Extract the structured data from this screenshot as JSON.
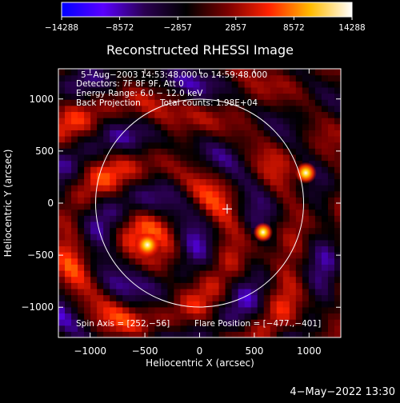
{
  "chart_data": {
    "type": "heatmap",
    "title": "Reconstructed RHESSI Image",
    "xlabel": "Heliocentric X (arcsec)",
    "ylabel": "Heliocentric Y (arcsec)",
    "xlim": [
      -1290,
      1290
    ],
    "ylim": [
      -1290,
      1290
    ],
    "xticks": [
      -1000,
      -500,
      0,
      500,
      1000
    ],
    "yticks": [
      -1000,
      -500,
      0,
      500,
      1000
    ],
    "xtick_labels": [
      "−1000",
      "−500",
      "0",
      "500",
      "1000"
    ],
    "ytick_labels": [
      "−1000",
      "−500",
      "0",
      "500",
      "1000"
    ],
    "colorbar": {
      "min": -14288,
      "max": 14288,
      "ticks": [
        -14288,
        -8572,
        -2857,
        2857,
        8572,
        14288
      ],
      "tick_labels": [
        "−14288",
        "−8572",
        "−2857",
        "2857",
        "8572",
        "14288"
      ],
      "colormap": [
        "#0000ff",
        "#5a00ff",
        "#2a0050",
        "#000000",
        "#7a0000",
        "#ff2200",
        "#ffbb00",
        "#ffffff"
      ]
    },
    "annotations": [
      "5−Aug−2003 14:53:48.000 to 14:59:48.000",
      "Detectors: 7F 8F 9F, Att 0",
      "Energy Range: 6.0 − 12.0 keV",
      "Back Projection",
      "Total counts: 1.98E+04"
    ],
    "spin_axis": "Spin Axis = [252,−56]",
    "flare_position": "Flare Position = [−477.,−401]",
    "solar_disk": {
      "center": [
        0,
        0
      ],
      "radius": 950
    },
    "marker": {
      "x": 252,
      "y": -56,
      "symbol": "+"
    },
    "sources": [
      {
        "x": -477,
        "y": -401,
        "peak": 14288
      },
      {
        "x": 970,
        "y": 290,
        "peak": 11000
      },
      {
        "x": 580,
        "y": -280,
        "peak": 9000
      }
    ]
  },
  "footer": {
    "timestamp": "4−May−2022 13:30"
  }
}
